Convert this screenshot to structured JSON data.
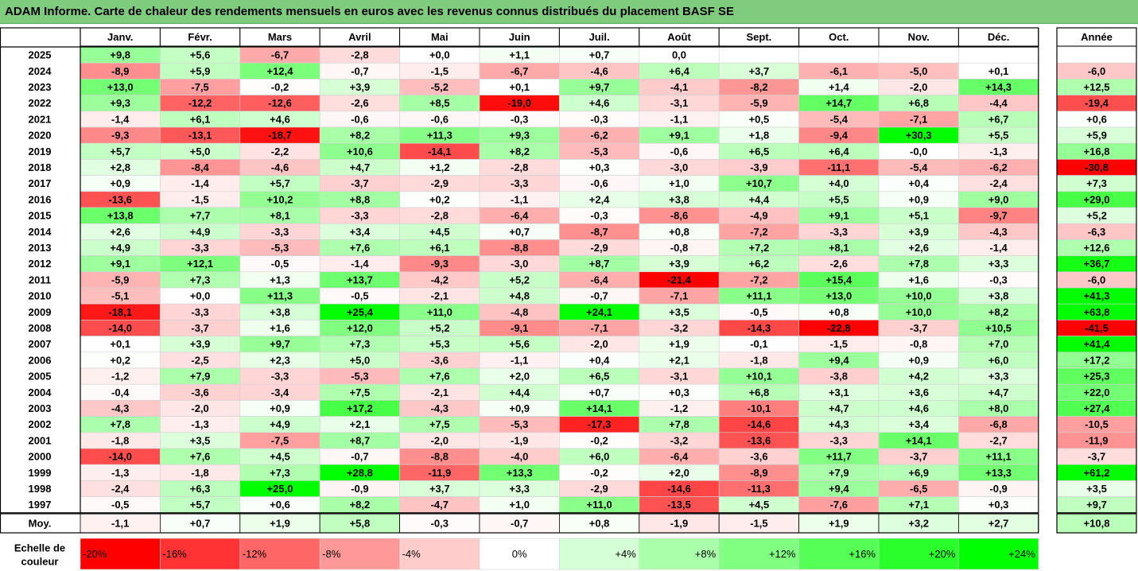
{
  "title": "ADAM Informe. Carte de chaleur des rendements mensuels en euros avec les revenus connus distribués du placement BASF SE",
  "chart_data": {
    "type": "heatmap",
    "months": [
      "Janv.",
      "Févr.",
      "Mars",
      "Avril",
      "Mai",
      "Juin",
      "Juil.",
      "Août",
      "Sept.",
      "Oct.",
      "Nov.",
      "Déc."
    ],
    "year_header": "Année",
    "rows": [
      {
        "year": "2025",
        "values": [
          "+9,8",
          "+5,6",
          "-6,7",
          "-2,8",
          "+0,0",
          "+1,1",
          "+0,7",
          "0,0",
          "",
          "",
          "",
          ""
        ],
        "annual": ""
      },
      {
        "year": "2024",
        "values": [
          "-8,9",
          "+5,9",
          "+12,4",
          "-0,7",
          "-1,5",
          "-6,7",
          "-4,6",
          "+6,4",
          "+3,7",
          "-6,1",
          "-5,0",
          "+0,1"
        ],
        "annual": "-6,0"
      },
      {
        "year": "2023",
        "values": [
          "+13,0",
          "-7,5",
          "-0,2",
          "+3,9",
          "-5,2",
          "+0,1",
          "+9,7",
          "-4,1",
          "-8,2",
          "+1,4",
          "-2,0",
          "+14,3"
        ],
        "annual": "+12,5"
      },
      {
        "year": "2022",
        "values": [
          "+9,3",
          "-12,2",
          "-12,6",
          "-2,6",
          "+8,5",
          "-19,0",
          "+4,6",
          "-3,1",
          "-5,9",
          "+14,7",
          "+6,8",
          "-4,4"
        ],
        "annual": "-19,4"
      },
      {
        "year": "2021",
        "values": [
          "-1,4",
          "+6,1",
          "+4,6",
          "-0,6",
          "-0,6",
          "-0,3",
          "-0,3",
          "-1,1",
          "+0,5",
          "-5,4",
          "-7,1",
          "+6,7"
        ],
        "annual": "+0,6"
      },
      {
        "year": "2020",
        "values": [
          "-9,3",
          "-13,1",
          "-18,7",
          "+8,2",
          "+11,3",
          "+9,3",
          "-6,2",
          "+9,1",
          "+1,8",
          "-9,4",
          "+30,3",
          "+5,5"
        ],
        "annual": "+5,9"
      },
      {
        "year": "2019",
        "values": [
          "+5,7",
          "+5,0",
          "-2,2",
          "+10,6",
          "-14,1",
          "+8,2",
          "-5,3",
          "-0,6",
          "+6,5",
          "+6,4",
          "-0,0",
          "-1,3"
        ],
        "annual": "+16,8"
      },
      {
        "year": "2018",
        "values": [
          "+2,8",
          "-8,4",
          "-4,6",
          "+4,7",
          "+1,2",
          "-2,8",
          "+0,3",
          "-3,0",
          "-3,9",
          "-11,1",
          "-5,4",
          "-6,2"
        ],
        "annual": "-30,8"
      },
      {
        "year": "2017",
        "values": [
          "+0,9",
          "-1,4",
          "+5,7",
          "-3,7",
          "-2,9",
          "-3,3",
          "-0,6",
          "+1,0",
          "+10,7",
          "+4,0",
          "+0,4",
          "-2,4"
        ],
        "annual": "+7,3"
      },
      {
        "year": "2016",
        "values": [
          "-13,6",
          "-1,5",
          "+10,2",
          "+8,8",
          "+0,2",
          "-1,1",
          "+2,4",
          "+3,8",
          "+4,4",
          "+5,5",
          "+0,9",
          "+9,0"
        ],
        "annual": "+29,0"
      },
      {
        "year": "2015",
        "values": [
          "+13,8",
          "+7,7",
          "+8,1",
          "-3,3",
          "-2,8",
          "-6,4",
          "-0,3",
          "-8,6",
          "-4,9",
          "+9,1",
          "+5,1",
          "-9,7"
        ],
        "annual": "+5,2"
      },
      {
        "year": "2014",
        "values": [
          "+2,6",
          "+4,9",
          "-3,3",
          "+3,4",
          "+4,5",
          "+0,7",
          "-8,7",
          "+0,8",
          "-7,2",
          "-3,3",
          "+3,9",
          "-4,3"
        ],
        "annual": "-6,3"
      },
      {
        "year": "2013",
        "values": [
          "+4,9",
          "-3,3",
          "-5,3",
          "+7,6",
          "+6,1",
          "-8,8",
          "-2,9",
          "-0,8",
          "+7,2",
          "+8,1",
          "+2,6",
          "-1,4"
        ],
        "annual": "+12,6"
      },
      {
        "year": "2012",
        "values": [
          "+9,1",
          "+12,1",
          "-0,5",
          "-1,4",
          "-9,3",
          "-3,0",
          "+8,7",
          "+3,9",
          "+6,2",
          "-2,6",
          "+7,8",
          "+3,3"
        ],
        "annual": "+36,7"
      },
      {
        "year": "2011",
        "values": [
          "-5,9",
          "+7,3",
          "+1,3",
          "+13,7",
          "-4,2",
          "+5,2",
          "-6,4",
          "-21,4",
          "-7,2",
          "+15,4",
          "+1,6",
          "-0,3"
        ],
        "annual": "-6,0"
      },
      {
        "year": "2010",
        "values": [
          "-5,1",
          "+0,0",
          "+11,3",
          "-0,5",
          "-2,1",
          "+4,8",
          "-0,7",
          "-7,1",
          "+11,1",
          "+13,0",
          "+10,0",
          "+3,8"
        ],
        "annual": "+41,3"
      },
      {
        "year": "2009",
        "values": [
          "-18,1",
          "-3,3",
          "+3,8",
          "+25,4",
          "+11,0",
          "-4,8",
          "+24,1",
          "+3,5",
          "-0,5",
          "+0,8",
          "+10,0",
          "+8,2"
        ],
        "annual": "+63,8"
      },
      {
        "year": "2008",
        "values": [
          "-14,0",
          "-3,7",
          "+1,6",
          "+12,0",
          "+5,2",
          "-9,1",
          "-7,1",
          "-3,2",
          "-14,3",
          "-22,8",
          "-3,7",
          "+10,5"
        ],
        "annual": "-41,5"
      },
      {
        "year": "2007",
        "values": [
          "+0,1",
          "+3,9",
          "+9,7",
          "+7,3",
          "+5,3",
          "+5,6",
          "-2,0",
          "+1,9",
          "-0,1",
          "-1,5",
          "-0,8",
          "+7,0"
        ],
        "annual": "+41,4"
      },
      {
        "year": "2006",
        "values": [
          "+0,2",
          "-2,5",
          "+2,3",
          "+5,0",
          "-3,6",
          "-1,1",
          "+0,4",
          "+2,1",
          "-1,8",
          "+9,4",
          "+0,9",
          "+6,0"
        ],
        "annual": "+17,2"
      },
      {
        "year": "2005",
        "values": [
          "-1,2",
          "+7,9",
          "-3,3",
          "-5,3",
          "+7,6",
          "+2,0",
          "+6,5",
          "-3,1",
          "+10,1",
          "-3,8",
          "+4,2",
          "+3,3"
        ],
        "annual": "+25,3"
      },
      {
        "year": "2004",
        "values": [
          "-0,4",
          "-3,6",
          "-3,4",
          "+7,5",
          "-2,1",
          "+4,4",
          "+0,7",
          "+0,3",
          "+6,8",
          "+3,1",
          "+3,6",
          "+4,7"
        ],
        "annual": "+22,0"
      },
      {
        "year": "2003",
        "values": [
          "-4,3",
          "-2,0",
          "+0,9",
          "+17,2",
          "-4,3",
          "+0,9",
          "+14,1",
          "-1,2",
          "-10,1",
          "+4,7",
          "+4,6",
          "+8,0"
        ],
        "annual": "+27,4"
      },
      {
        "year": "2002",
        "values": [
          "+7,8",
          "-1,3",
          "+4,9",
          "+2,1",
          "+7,5",
          "-5,3",
          "-17,3",
          "+7,8",
          "-14,6",
          "+4,3",
          "+3,4",
          "-6,8"
        ],
        "annual": "-10,5"
      },
      {
        "year": "2001",
        "values": [
          "-1,8",
          "+3,5",
          "-7,5",
          "+8,7",
          "-2,0",
          "-1,9",
          "-0,2",
          "-3,2",
          "-13,6",
          "-3,3",
          "+14,1",
          "-2,7"
        ],
        "annual": "-11,9"
      },
      {
        "year": "2000",
        "values": [
          "-14,0",
          "+7,6",
          "+4,5",
          "-0,7",
          "-8,8",
          "-4,0",
          "+6,0",
          "-6,4",
          "-3,6",
          "+11,7",
          "-3,7",
          "+11,1"
        ],
        "annual": "-3,7"
      },
      {
        "year": "1999",
        "values": [
          "-1,3",
          "-1,8",
          "+7,3",
          "+28,8",
          "-11,9",
          "+13,3",
          "-0,2",
          "+2,0",
          "-8,9",
          "+7,9",
          "+6,9",
          "+13,3"
        ],
        "annual": "+61,2"
      },
      {
        "year": "1998",
        "values": [
          "-2,4",
          "+6,3",
          "+25,0",
          "-0,9",
          "+3,7",
          "+3,3",
          "-2,9",
          "-14,6",
          "-11,3",
          "+9,4",
          "-6,5",
          "-0,9"
        ],
        "annual": "+3,5"
      },
      {
        "year": "1997",
        "values": [
          "-0,5",
          "+5,7",
          "+0,6",
          "+8,2",
          "-4,7",
          "+1,0",
          "+11,0",
          "-13,5",
          "+4,5",
          "-7,6",
          "+7,1",
          "+0,3"
        ],
        "annual": "+9,7"
      }
    ],
    "average": {
      "label": "Moy.",
      "values": [
        "-1,1",
        "+0,7",
        "+1,9",
        "+5,8",
        "-0,3",
        "-0,7",
        "+0,8",
        "-1,9",
        "-1,5",
        "+1,9",
        "+3,2",
        "+2,7"
      ],
      "annual": "+10,8"
    },
    "scale": {
      "label": [
        "Echelle de",
        "couleur"
      ],
      "steps": [
        {
          "label": "-20%",
          "value": -20
        },
        {
          "label": "-16%",
          "value": -16
        },
        {
          "label": "-12%",
          "value": -12
        },
        {
          "label": "-8%",
          "value": -8
        },
        {
          "label": "-4%",
          "value": -4
        },
        {
          "label": "0%",
          "value": 0
        },
        {
          "label": "+4%",
          "value": 4
        },
        {
          "label": "+8%",
          "value": 8
        },
        {
          "label": "+12%",
          "value": 12
        },
        {
          "label": "+16%",
          "value": 16
        },
        {
          "label": "+20%",
          "value": 20
        },
        {
          "label": "+24%",
          "value": 24
        }
      ]
    },
    "colors": {
      "negative_max": "#ff0000",
      "positive_max": "#00ff00",
      "neutral": "#ffffff",
      "title_bar": "#7fcc7f"
    }
  }
}
